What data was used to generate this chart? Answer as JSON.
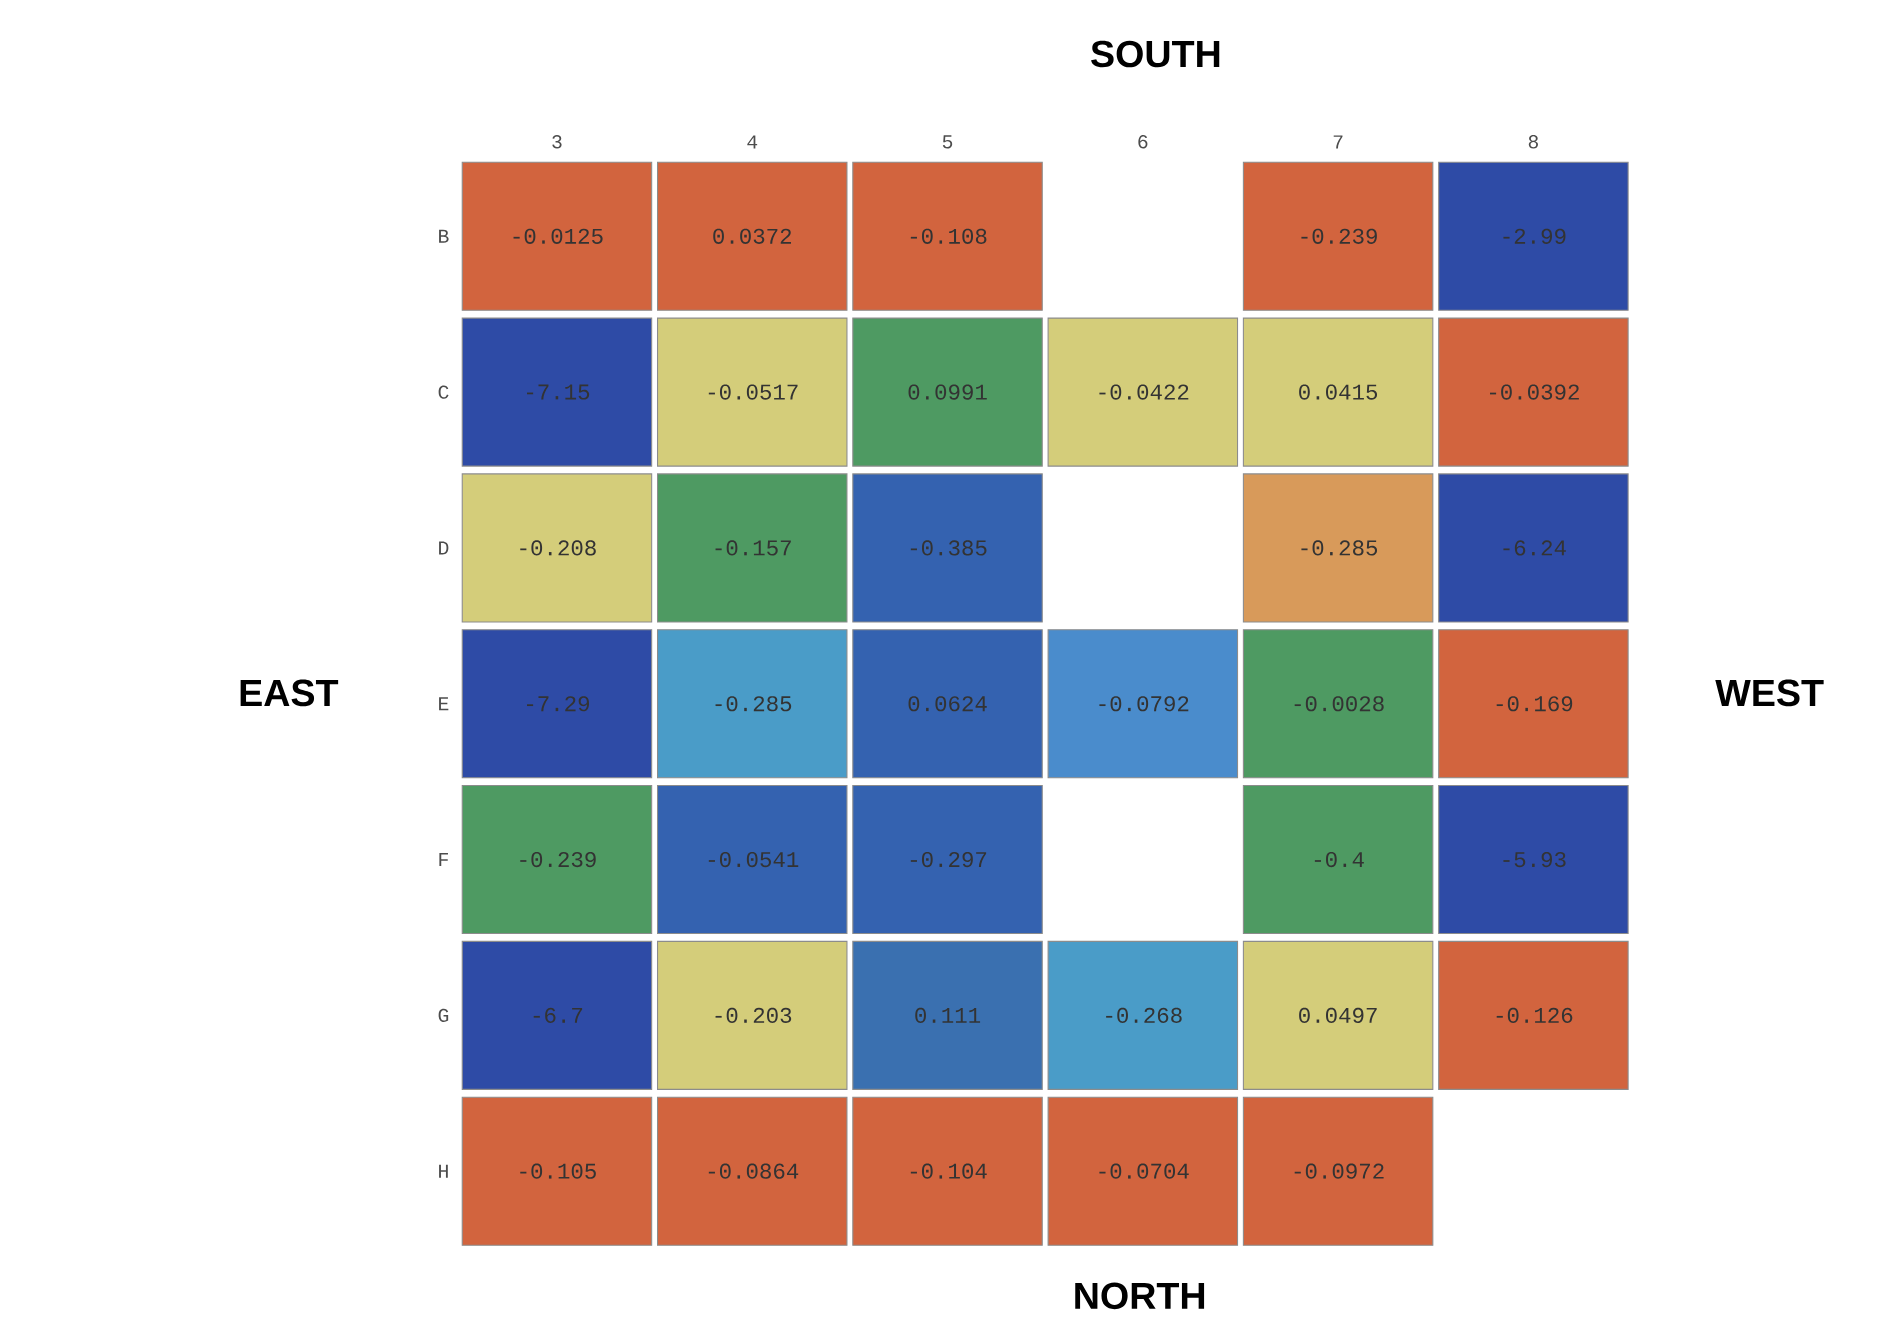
{
  "chart_data": {
    "type": "heatmap",
    "title": "SOUTH",
    "xlabel": "NORTH",
    "ylabel": "EAST",
    "y2label": "WEST",
    "categories": [
      "3",
      "4",
      "5",
      "6",
      "7",
      "8"
    ],
    "y_categories": [
      "B",
      "C",
      "D",
      "E",
      "F",
      "G",
      "H"
    ],
    "cells": [
      [
        -0.0125,
        0.0372,
        -0.108,
        null,
        -0.239,
        -2.99
      ],
      [
        -7.15,
        -0.0517,
        0.0991,
        -0.0422,
        0.0415,
        -0.0392
      ],
      [
        -0.208,
        -0.157,
        -0.385,
        null,
        -0.285,
        -6.24
      ],
      [
        -7.29,
        -0.285,
        0.0624,
        -0.0792,
        -0.0028,
        -0.169
      ],
      [
        -0.239,
        -0.0541,
        -0.297,
        null,
        -0.4,
        -5.93
      ],
      [
        -6.7,
        -0.203,
        0.111,
        -0.268,
        0.0497,
        -0.126
      ],
      [
        -0.105,
        -0.0864,
        -0.104,
        -0.0704,
        -0.0972,
        null
      ]
    ],
    "colors": [
      [
        "#d2643e",
        "#d2643e",
        "#d2643e",
        null,
        "#d2643e",
        "#2e4ba6"
      ],
      [
        "#2e4ba6",
        "#d4cd7a",
        "#4e9a62",
        "#d4cd7a",
        "#d4cd7a",
        "#d2643e"
      ],
      [
        "#d4cd7a",
        "#4e9a62",
        "#3462b0",
        null,
        "#d89a5a",
        "#2e4ba6"
      ],
      [
        "#2e4ba6",
        "#4a9cc8",
        "#3462b0",
        "#4a8ccc",
        "#4e9a62",
        "#d2643e"
      ],
      [
        "#4e9a62",
        "#3462b0",
        "#3462b0",
        null,
        "#4e9a62",
        "#2e4ba6"
      ],
      [
        "#2e4ba6",
        "#d4cd7a",
        "#3a70b0",
        "#4a9cc8",
        "#d4cd7a",
        "#d2643e"
      ],
      [
        "#d2643e",
        "#d2643e",
        "#d2643e",
        "#d2643e",
        "#d2643e",
        null
      ]
    ],
    "data_labels": true
  }
}
